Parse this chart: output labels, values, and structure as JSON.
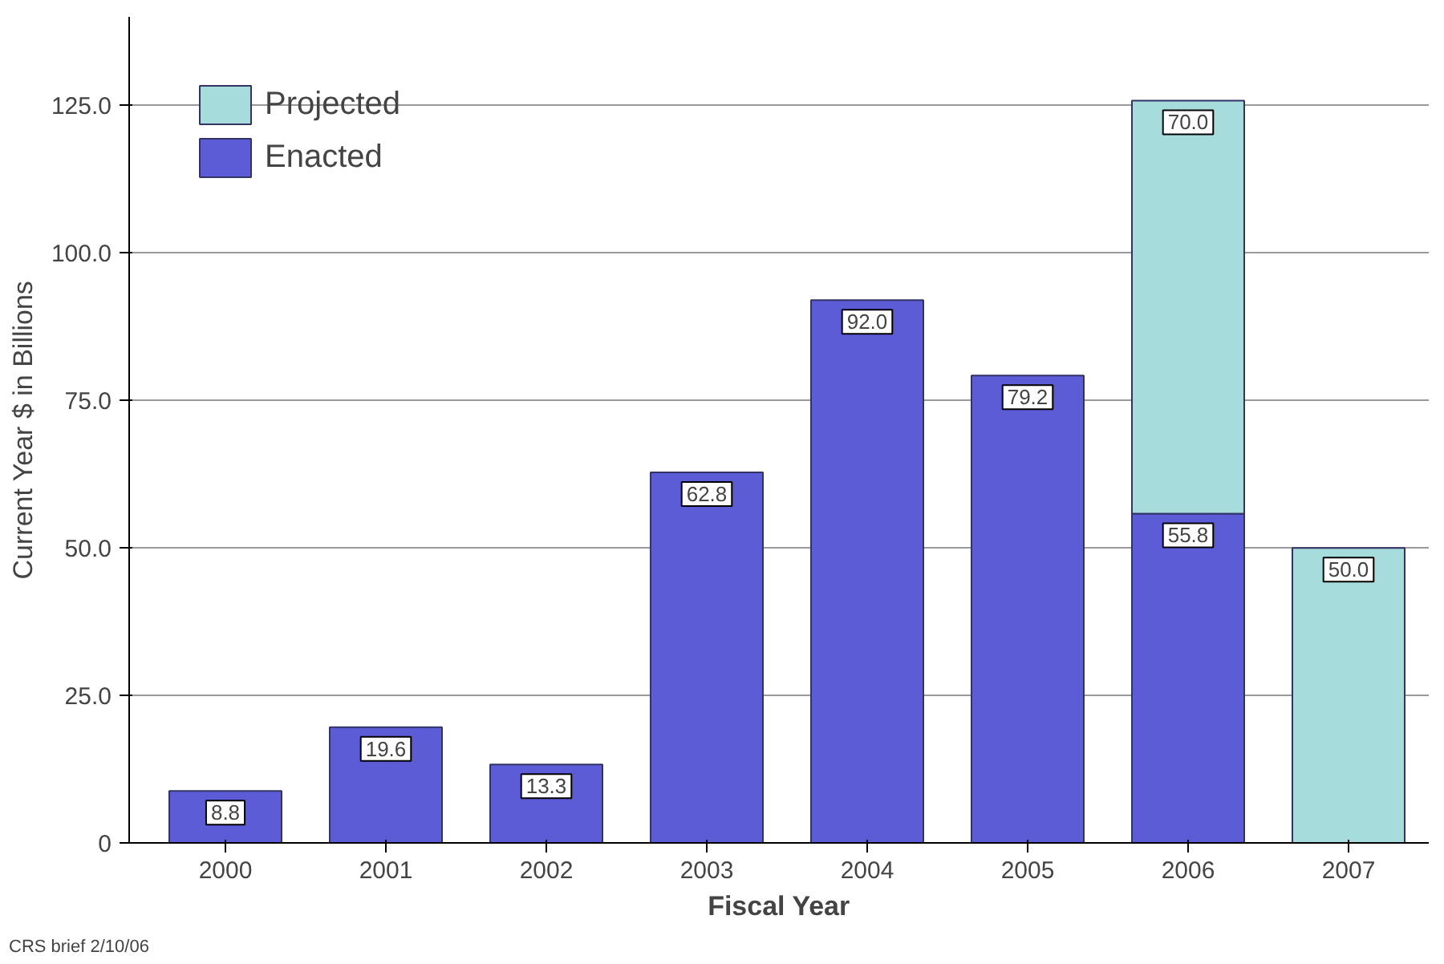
{
  "chart_data": {
    "type": "bar",
    "stacked": true,
    "xlabel": "Fiscal Year",
    "ylabel": "Current Year $ in Billions",
    "categories": [
      "2000",
      "2001",
      "2002",
      "2003",
      "2004",
      "2005",
      "2006",
      "2007"
    ],
    "series": [
      {
        "name": "Enacted",
        "color": "#5c5cd6",
        "values": [
          8.8,
          19.6,
          13.3,
          62.8,
          92.0,
          79.2,
          55.8,
          null
        ],
        "value_labels": [
          "8.8",
          "19.6",
          "13.3",
          "62.8",
          "92.0",
          "79.2",
          "55.8",
          null
        ]
      },
      {
        "name": "Projected",
        "color": "#a6dcdc",
        "values": [
          null,
          null,
          null,
          null,
          null,
          null,
          70.0,
          50.0
        ],
        "value_labels": [
          null,
          null,
          null,
          null,
          null,
          null,
          "70.0",
          "50.0"
        ]
      }
    ],
    "ylim": [
      0,
      140
    ],
    "yticks": [
      0,
      {
        "value": 25,
        "label": "25.0"
      },
      {
        "value": 50,
        "label": "50.0"
      },
      {
        "value": 75,
        "label": "75.0"
      },
      {
        "value": 100,
        "label": "100.0"
      },
      {
        "value": 125,
        "label": "125.0"
      }
    ],
    "grid": "y",
    "legend": "top left",
    "annotations": [
      "CRS brief 2/10/06"
    ]
  }
}
